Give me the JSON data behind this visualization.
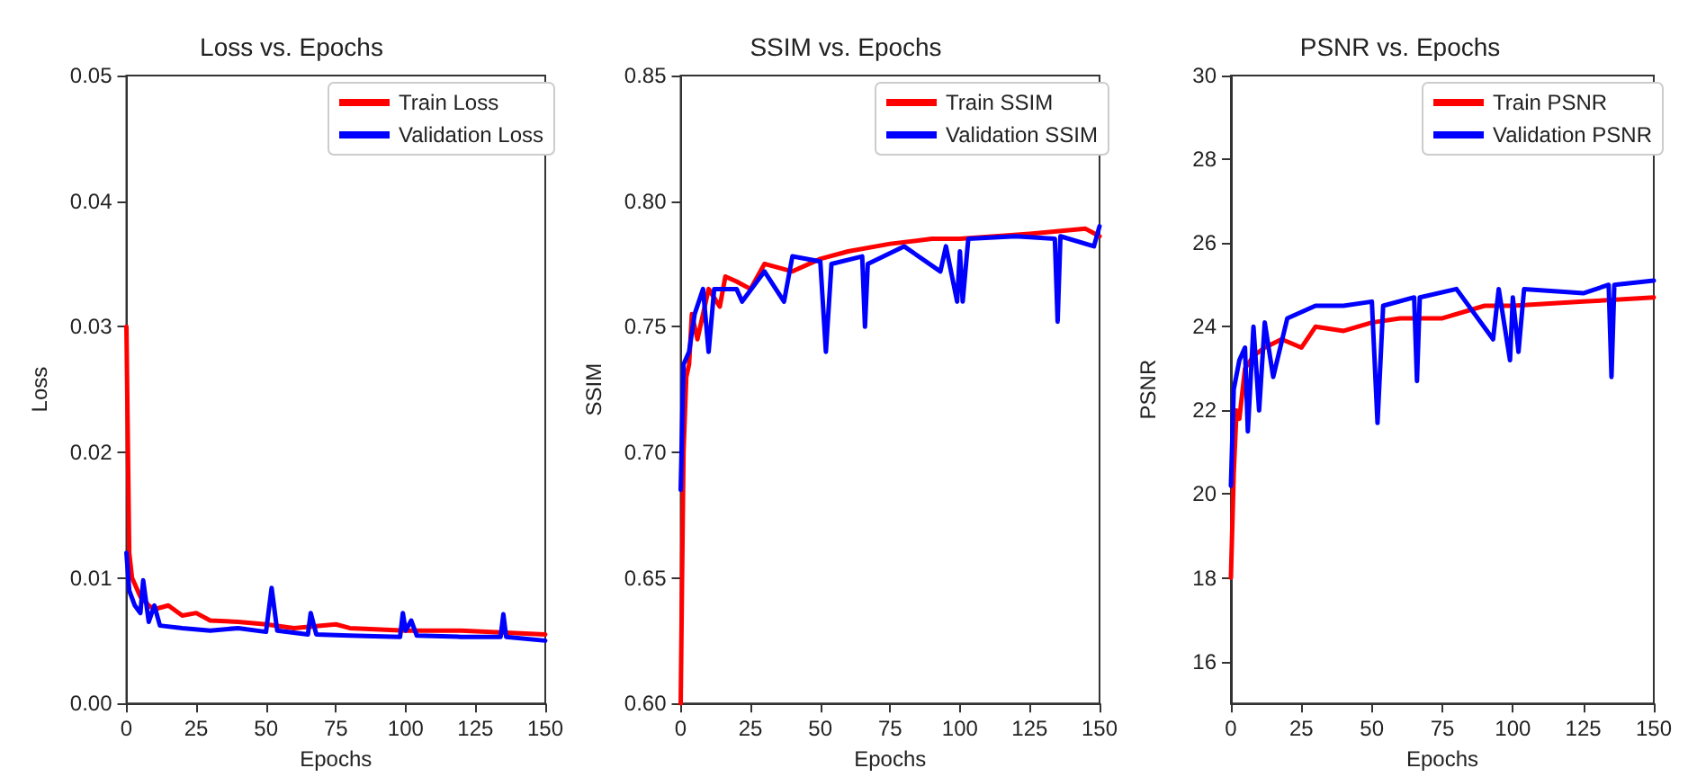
{
  "chart_data": [
    {
      "type": "line",
      "title": "Loss vs. Epochs",
      "xlabel": "Epochs",
      "ylabel": "Loss",
      "xlim": [
        0,
        150
      ],
      "xticks": [
        0,
        25,
        50,
        75,
        100,
        125,
        150
      ],
      "ylim": [
        0,
        0.05
      ],
      "yticks": [
        {
          "value": 0,
          "label": "0.00"
        },
        {
          "value": 0.01,
          "label": "0.01"
        },
        {
          "value": 0.02,
          "label": "0.02"
        },
        {
          "value": 0.03,
          "label": "0.03"
        },
        {
          "value": 0.04,
          "label": "0.04"
        },
        {
          "value": 0.05,
          "label": "0.05"
        }
      ],
      "legend": "top right",
      "marker": "none",
      "line_style": "solid",
      "series": [
        {
          "name": "Train Loss",
          "color": "#ff0000",
          "x": [
            0,
            1,
            2,
            3,
            5,
            8,
            10,
            15,
            20,
            25,
            30,
            40,
            50,
            60,
            75,
            80,
            100,
            120,
            150
          ],
          "values": [
            0.03,
            0.012,
            0.01,
            0.0095,
            0.0085,
            0.0078,
            0.0075,
            0.0078,
            0.007,
            0.0072,
            0.0066,
            0.0065,
            0.0063,
            0.006,
            0.0063,
            0.006,
            0.0058,
            0.0058,
            0.0055
          ]
        },
        {
          "name": "Validation Loss",
          "color": "#0000ff",
          "x": [
            0,
            1,
            3,
            5,
            6,
            8,
            10,
            12,
            20,
            30,
            40,
            50,
            52,
            54,
            65,
            66,
            68,
            80,
            98,
            99,
            100,
            102,
            104,
            120,
            134,
            135,
            136,
            150
          ],
          "values": [
            0.012,
            0.009,
            0.0078,
            0.0072,
            0.0098,
            0.0065,
            0.0078,
            0.0062,
            0.006,
            0.0058,
            0.006,
            0.0057,
            0.0092,
            0.0058,
            0.0055,
            0.0072,
            0.0055,
            0.0054,
            0.0053,
            0.0072,
            0.0058,
            0.0066,
            0.0054,
            0.0053,
            0.0053,
            0.0071,
            0.0053,
            0.005
          ]
        }
      ]
    },
    {
      "type": "line",
      "title": "SSIM vs. Epochs",
      "xlabel": "Epochs",
      "ylabel": "SSIM",
      "xlim": [
        0,
        150
      ],
      "xticks": [
        0,
        25,
        50,
        75,
        100,
        125,
        150
      ],
      "ylim": [
        0.6,
        0.85
      ],
      "yticks": [
        {
          "value": 0.6,
          "label": "0.60"
        },
        {
          "value": 0.65,
          "label": "0.65"
        },
        {
          "value": 0.7,
          "label": "0.70"
        },
        {
          "value": 0.75,
          "label": "0.75"
        },
        {
          "value": 0.8,
          "label": "0.80"
        },
        {
          "value": 0.85,
          "label": "0.85"
        }
      ],
      "legend": "top right",
      "marker": "none",
      "line_style": "solid",
      "series": [
        {
          "name": "Train SSIM",
          "color": "#ff0000",
          "x": [
            0,
            1,
            2,
            3,
            4,
            6,
            8,
            10,
            14,
            16,
            20,
            25,
            30,
            40,
            50,
            60,
            75,
            90,
            100,
            125,
            145,
            150
          ],
          "values": [
            0.6,
            0.7,
            0.73,
            0.735,
            0.755,
            0.745,
            0.755,
            0.765,
            0.758,
            0.77,
            0.768,
            0.765,
            0.775,
            0.772,
            0.777,
            0.78,
            0.783,
            0.785,
            0.785,
            0.787,
            0.789,
            0.786
          ]
        },
        {
          "name": "Validation SSIM",
          "color": "#0000ff",
          "x": [
            0,
            1,
            3,
            5,
            8,
            10,
            12,
            20,
            22,
            30,
            37,
            40,
            50,
            52,
            54,
            65,
            66,
            67,
            80,
            93,
            95,
            99,
            100,
            101,
            103,
            120,
            134,
            135,
            136,
            148,
            150
          ],
          "values": [
            0.685,
            0.735,
            0.74,
            0.755,
            0.765,
            0.74,
            0.765,
            0.765,
            0.76,
            0.772,
            0.76,
            0.778,
            0.776,
            0.74,
            0.775,
            0.778,
            0.75,
            0.775,
            0.782,
            0.772,
            0.782,
            0.76,
            0.78,
            0.76,
            0.785,
            0.786,
            0.785,
            0.752,
            0.786,
            0.782,
            0.79
          ]
        }
      ]
    },
    {
      "type": "line",
      "title": "PSNR vs. Epochs",
      "xlabel": "Epochs",
      "ylabel": "PSNR",
      "xlim": [
        0,
        150
      ],
      "xticks": [
        0,
        25,
        50,
        75,
        100,
        125,
        150
      ],
      "ylim": [
        15,
        30
      ],
      "yticks": [
        16,
        18,
        20,
        22,
        24,
        26,
        28,
        30
      ],
      "legend": "top right",
      "marker": "none",
      "line_style": "solid",
      "series": [
        {
          "name": "Train PSNR",
          "color": "#ff0000",
          "x": [
            0,
            1,
            2,
            3,
            5,
            8,
            12,
            18,
            25,
            30,
            40,
            50,
            60,
            75,
            90,
            100,
            125,
            150
          ],
          "values": [
            18,
            20.5,
            22,
            21.8,
            23,
            23.3,
            23.5,
            23.7,
            23.5,
            24,
            23.9,
            24.1,
            24.2,
            24.2,
            24.5,
            24.5,
            24.6,
            24.7
          ]
        },
        {
          "name": "Validation PSNR",
          "color": "#0000ff",
          "x": [
            0,
            1,
            3,
            5,
            6,
            8,
            10,
            12,
            15,
            20,
            30,
            40,
            50,
            52,
            54,
            65,
            66,
            67,
            80,
            93,
            95,
            99,
            100,
            102,
            104,
            125,
            134,
            135,
            136,
            150
          ],
          "values": [
            20.2,
            22.5,
            23.2,
            23.5,
            21.5,
            24,
            22,
            24.1,
            22.8,
            24.2,
            24.5,
            24.5,
            24.6,
            21.7,
            24.5,
            24.7,
            22.7,
            24.7,
            24.9,
            23.7,
            24.9,
            23.2,
            24.7,
            23.4,
            24.9,
            24.8,
            25,
            22.8,
            25,
            25.1
          ]
        }
      ]
    }
  ]
}
